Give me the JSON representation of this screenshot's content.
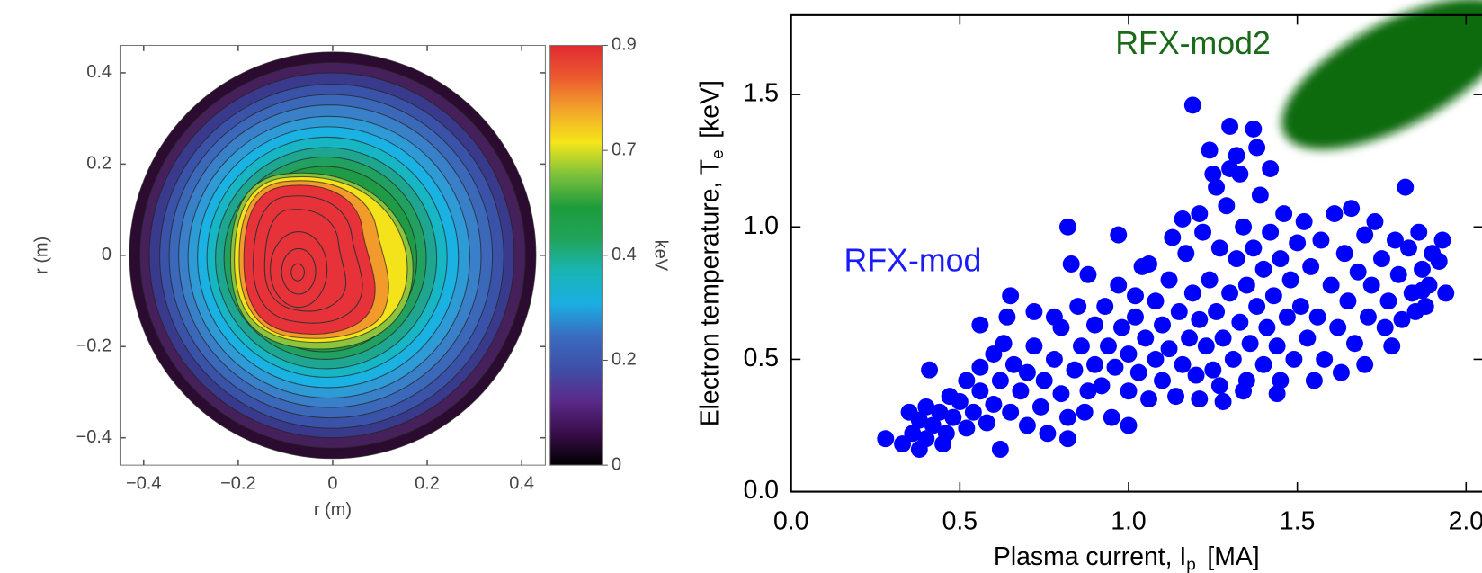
{
  "chart_data": [
    {
      "type": "contour",
      "xlabel": "r (m)",
      "ylabel": "r (m)",
      "xlim": [
        -0.45,
        0.45
      ],
      "ylim": [
        -0.46,
        0.46
      ],
      "xticks": [
        {
          "value": -0.4,
          "label": "−0.4"
        },
        {
          "value": -0.2,
          "label": "−0.2"
        },
        0,
        0.2,
        0.4
      ],
      "yticks": [
        {
          "value": -0.4,
          "label": "−0.4"
        },
        {
          "value": -0.2,
          "label": "−0.2"
        },
        0,
        0.2,
        0.4
      ],
      "colorbar": {
        "label": "keV",
        "ticks": [
          0,
          0.2,
          0.4,
          0.7,
          0.9
        ],
        "colors": [
          "#000000",
          "#3a0d4a",
          "#5a2a8a",
          "#3f4fa8",
          "#3a6cc0",
          "#1aaee2",
          "#19b5b5",
          "#21a45a",
          "#1e9c3c",
          "#7ec23c",
          "#f5e61a",
          "#f2a52a",
          "#ec5a30",
          "#e02a30"
        ]
      }
    },
    {
      "type": "scatter",
      "xlabel": {
        "text": "Plasma current, I",
        "subscript": "p",
        "unit": "[MA]"
      },
      "ylabel": {
        "text": "Electron temperature, T",
        "subscript": "e",
        "unit": "[keV]"
      },
      "xlim": [
        0,
        2.05
      ],
      "ylim": [
        0,
        1.8
      ],
      "xticks": [
        {
          "value": 0,
          "label": "0.0"
        },
        0.5,
        {
          "value": 1,
          "label": "1.0"
        },
        1.5,
        {
          "value": 2,
          "label": "2.0"
        }
      ],
      "yticks": [
        {
          "value": 0,
          "label": "0.0"
        },
        0.5,
        {
          "value": 1,
          "label": "1.0"
        },
        1.5
      ],
      "color": "#0000ff",
      "annotations": [
        {
          "text": "RFX-mod"
        },
        {
          "text": "RFX-mod2"
        }
      ],
      "x": [
        0.28,
        0.41,
        0.82,
        0.97,
        1.19,
        1.25,
        1.3,
        1.37,
        1.82,
        1.28,
        1.21,
        1.0,
        0.82,
        1.44,
        1.45,
        1.92,
        1.94,
        1.87,
        1.06,
        1.13,
        1.16,
        1.24,
        1.32,
        1.02,
        0.65,
        0.64,
        0.56,
        0.38,
        0.45,
        0.62,
        0.33,
        0.36,
        0.38,
        0.4,
        0.42,
        0.44,
        0.46,
        0.48,
        0.5,
        0.52,
        0.54,
        0.56,
        0.58,
        0.6,
        0.47,
        0.52,
        0.56,
        0.6,
        0.62,
        0.63,
        0.35,
        0.4,
        0.65,
        0.66,
        0.68,
        0.7,
        0.7,
        0.72,
        0.74,
        0.75,
        0.76,
        0.78,
        0.8,
        0.8,
        0.82,
        0.84,
        0.85,
        0.86,
        0.88,
        0.88,
        0.9,
        0.9,
        0.87,
        0.83,
        0.78,
        0.72,
        0.92,
        0.93,
        0.94,
        0.95,
        0.96,
        0.98,
        1.0,
        1.0,
        1.02,
        1.03,
        1.05,
        1.06,
        1.08,
        1.08,
        1.1,
        1.1,
        1.12,
        1.12,
        1.14,
        1.15,
        1.16,
        1.17,
        1.18,
        1.19,
        1.2,
        1.21,
        0.97,
        1.04,
        1.22,
        1.21,
        1.23,
        1.24,
        1.25,
        1.26,
        1.27,
        1.28,
        1.29,
        1.3,
        1.31,
        1.32,
        1.33,
        1.34,
        1.35,
        1.35,
        1.36,
        1.37,
        1.38,
        1.39,
        1.4,
        1.4,
        1.41,
        1.42,
        1.43,
        1.44,
        1.45,
        1.46,
        1.47,
        1.48,
        1.49,
        1.5,
        1.26,
        1.33,
        1.38,
        1.3,
        1.34,
        1.42,
        1.27,
        1.51,
        1.52,
        1.53,
        1.54,
        1.56,
        1.57,
        1.58,
        1.6,
        1.61,
        1.62,
        1.64,
        1.65,
        1.66,
        1.67,
        1.68,
        1.7,
        1.71,
        1.72,
        1.73,
        1.75,
        1.76,
        1.77,
        1.79,
        1.8,
        1.81,
        1.83,
        1.84,
        1.86,
        1.87,
        1.88,
        1.9,
        1.93,
        1.89,
        1.85,
        1.78,
        1.63,
        1.55,
        1.7
      ],
      "values": [
        0.2,
        0.46,
        1.0,
        0.97,
        1.46,
        1.2,
        1.38,
        1.37,
        1.15,
        0.34,
        0.35,
        0.25,
        0.2,
        0.37,
        0.42,
        0.87,
        0.75,
        0.76,
        0.86,
        0.96,
        1.03,
        1.29,
        1.27,
        0.74,
        0.74,
        0.66,
        0.63,
        0.16,
        0.18,
        0.16,
        0.18,
        0.22,
        0.27,
        0.2,
        0.25,
        0.3,
        0.22,
        0.28,
        0.34,
        0.24,
        0.3,
        0.38,
        0.26,
        0.33,
        0.36,
        0.42,
        0.47,
        0.52,
        0.42,
        0.56,
        0.3,
        0.32,
        0.3,
        0.48,
        0.38,
        0.25,
        0.45,
        0.55,
        0.32,
        0.42,
        0.22,
        0.5,
        0.37,
        0.62,
        0.28,
        0.46,
        0.7,
        0.55,
        0.38,
        0.82,
        0.63,
        0.48,
        0.3,
        0.86,
        0.66,
        0.68,
        0.4,
        0.7,
        0.55,
        0.28,
        0.47,
        0.62,
        0.38,
        0.52,
        0.66,
        0.45,
        0.58,
        0.35,
        0.5,
        0.72,
        0.42,
        0.63,
        0.54,
        0.8,
        0.36,
        0.68,
        0.48,
        0.9,
        0.58,
        0.75,
        0.44,
        0.65,
        0.78,
        0.85,
        0.98,
        1.05,
        0.55,
        0.8,
        0.46,
        0.68,
        0.92,
        0.58,
        1.08,
        0.75,
        0.5,
        0.88,
        0.64,
        1.0,
        0.42,
        0.78,
        0.56,
        0.92,
        0.7,
        1.12,
        0.48,
        0.84,
        0.62,
        0.98,
        0.74,
        0.55,
        0.88,
        1.05,
        0.66,
        0.8,
        0.5,
        0.94,
        1.15,
        1.2,
        1.3,
        1.22,
        0.38,
        1.22,
        0.4,
        0.7,
        1.02,
        0.58,
        0.85,
        0.66,
        0.95,
        0.5,
        0.78,
        1.05,
        0.62,
        0.9,
        0.72,
        1.07,
        0.56,
        0.83,
        0.97,
        0.66,
        0.78,
        1.02,
        0.88,
        0.62,
        0.72,
        0.95,
        0.82,
        0.65,
        0.92,
        0.75,
        0.98,
        0.84,
        0.7,
        0.9,
        0.95,
        0.78,
        0.68,
        0.55,
        0.45,
        0.42,
        0.48
      ]
    }
  ]
}
